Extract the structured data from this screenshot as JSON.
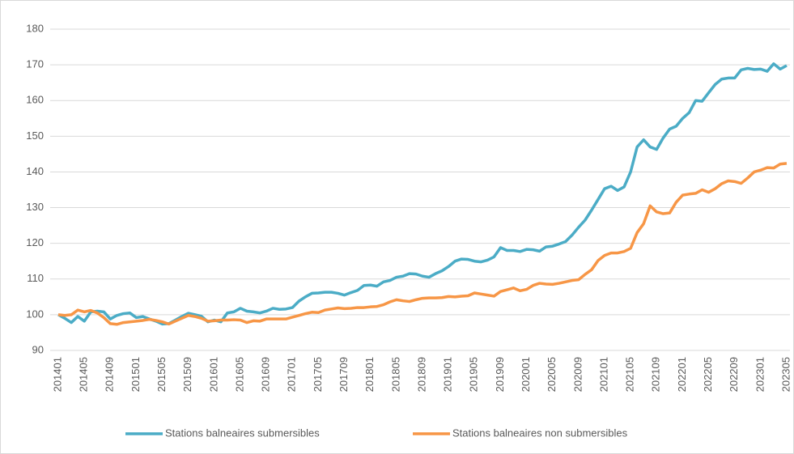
{
  "chart_data": {
    "type": "line",
    "categories": [
      "201401",
      null,
      null,
      null,
      "201405",
      null,
      null,
      null,
      "201409",
      null,
      null,
      null,
      "201501",
      null,
      null,
      null,
      "201505",
      null,
      null,
      null,
      "201509",
      null,
      null,
      null,
      "201601",
      null,
      null,
      null,
      "201605",
      null,
      null,
      null,
      "201609",
      null,
      null,
      null,
      "201701",
      null,
      null,
      null,
      "201705",
      null,
      null,
      null,
      "201709",
      null,
      null,
      null,
      "201801",
      null,
      null,
      null,
      "201805",
      null,
      null,
      null,
      "201809",
      null,
      null,
      null,
      "201901",
      null,
      null,
      null,
      "201905",
      null,
      null,
      null,
      "201909",
      null,
      null,
      null,
      "202001",
      null,
      null,
      null,
      "202005",
      null,
      null,
      null,
      "202009",
      null,
      null,
      null,
      "202101",
      null,
      null,
      null,
      "202105",
      null,
      null,
      null,
      "202109",
      null,
      null,
      null,
      "202201",
      null,
      null,
      null,
      "202205",
      null,
      null,
      null,
      "202209",
      null,
      null,
      null,
      "202301",
      null,
      null,
      null,
      "202305"
    ],
    "series": [
      {
        "name": "Stations balneaires submersibles",
        "color": "#4bacc6",
        "values": [
          100,
          99,
          97.8,
          99.5,
          98.2,
          100.8,
          101,
          100.8,
          98.8,
          99.8,
          100.3,
          100.5,
          99.2,
          99.5,
          98.8,
          98.2,
          97.4,
          97.5,
          98.5,
          99.5,
          100.4,
          100,
          99.6,
          98,
          98.5,
          98,
          100.5,
          100.8,
          101.8,
          101,
          100.8,
          100.5,
          101,
          101.8,
          101.5,
          101.6,
          102,
          103.8,
          105,
          106,
          106.1,
          106.3,
          106.3,
          106,
          105.5,
          106.2,
          106.8,
          108.2,
          108.3,
          108,
          109.2,
          109.6,
          110.5,
          110.8,
          111.5,
          111.4,
          110.8,
          110.5,
          111.5,
          112.3,
          113.5,
          115,
          115.6,
          115.5,
          115,
          114.8,
          115.3,
          116.2,
          118.8,
          118,
          118,
          117.7,
          118.3,
          118.2,
          117.8,
          119,
          119.2,
          119.8,
          120.5,
          122.3,
          124.5,
          126.5,
          129.3,
          132.3,
          135.3,
          136,
          134.8,
          135.8,
          140,
          147,
          149,
          147,
          146.3,
          149.5,
          152,
          152.8,
          155,
          156.6,
          160,
          159.8,
          162.2,
          164.5,
          166,
          166.3,
          166.3,
          168.6,
          169,
          168.7,
          168.8,
          168.2,
          170.3,
          168.8,
          169.8
        ]
      },
      {
        "name": "Stations balneaires non submersibles",
        "color": "#f79646",
        "values": [
          100,
          99.8,
          100,
          101.3,
          100.8,
          101.2,
          100.5,
          99.2,
          97.5,
          97.3,
          97.8,
          98,
          98.2,
          98.4,
          98.7,
          98.4,
          98,
          97.4,
          98.2,
          99,
          99.8,
          99.5,
          99,
          98.2,
          98.3,
          98.5,
          98.5,
          98.6,
          98.5,
          97.8,
          98.3,
          98.2,
          98.8,
          98.8,
          98.8,
          98.8,
          99.3,
          99.8,
          100.3,
          100.7,
          100.6,
          101.3,
          101.6,
          101.9,
          101.7,
          101.8,
          102,
          102,
          102.2,
          102.3,
          102.8,
          103.6,
          104.2,
          103.9,
          103.7,
          104.2,
          104.6,
          104.7,
          104.7,
          104.8,
          105.1,
          105,
          105.2,
          105.3,
          106.1,
          105.8,
          105.5,
          105.2,
          106.5,
          107,
          107.5,
          106.7,
          107.1,
          108.2,
          108.8,
          108.6,
          108.5,
          108.8,
          109.2,
          109.6,
          109.8,
          111.3,
          112.6,
          115.2,
          116.6,
          117.3,
          117.3,
          117.7,
          118.6,
          123,
          125.5,
          130.5,
          128.8,
          128.3,
          128.5,
          131.5,
          133.5,
          133.8,
          134,
          135,
          134.3,
          135.3,
          136.7,
          137.5,
          137.3,
          136.8,
          138.3,
          140,
          140.5,
          141.2,
          141.1,
          142.2,
          142.4
        ]
      }
    ],
    "ylim": [
      90,
      180
    ],
    "yticks": [
      90,
      100,
      110,
      120,
      130,
      140,
      150,
      160,
      170,
      180
    ],
    "grid": true,
    "legend": "bottom"
  }
}
